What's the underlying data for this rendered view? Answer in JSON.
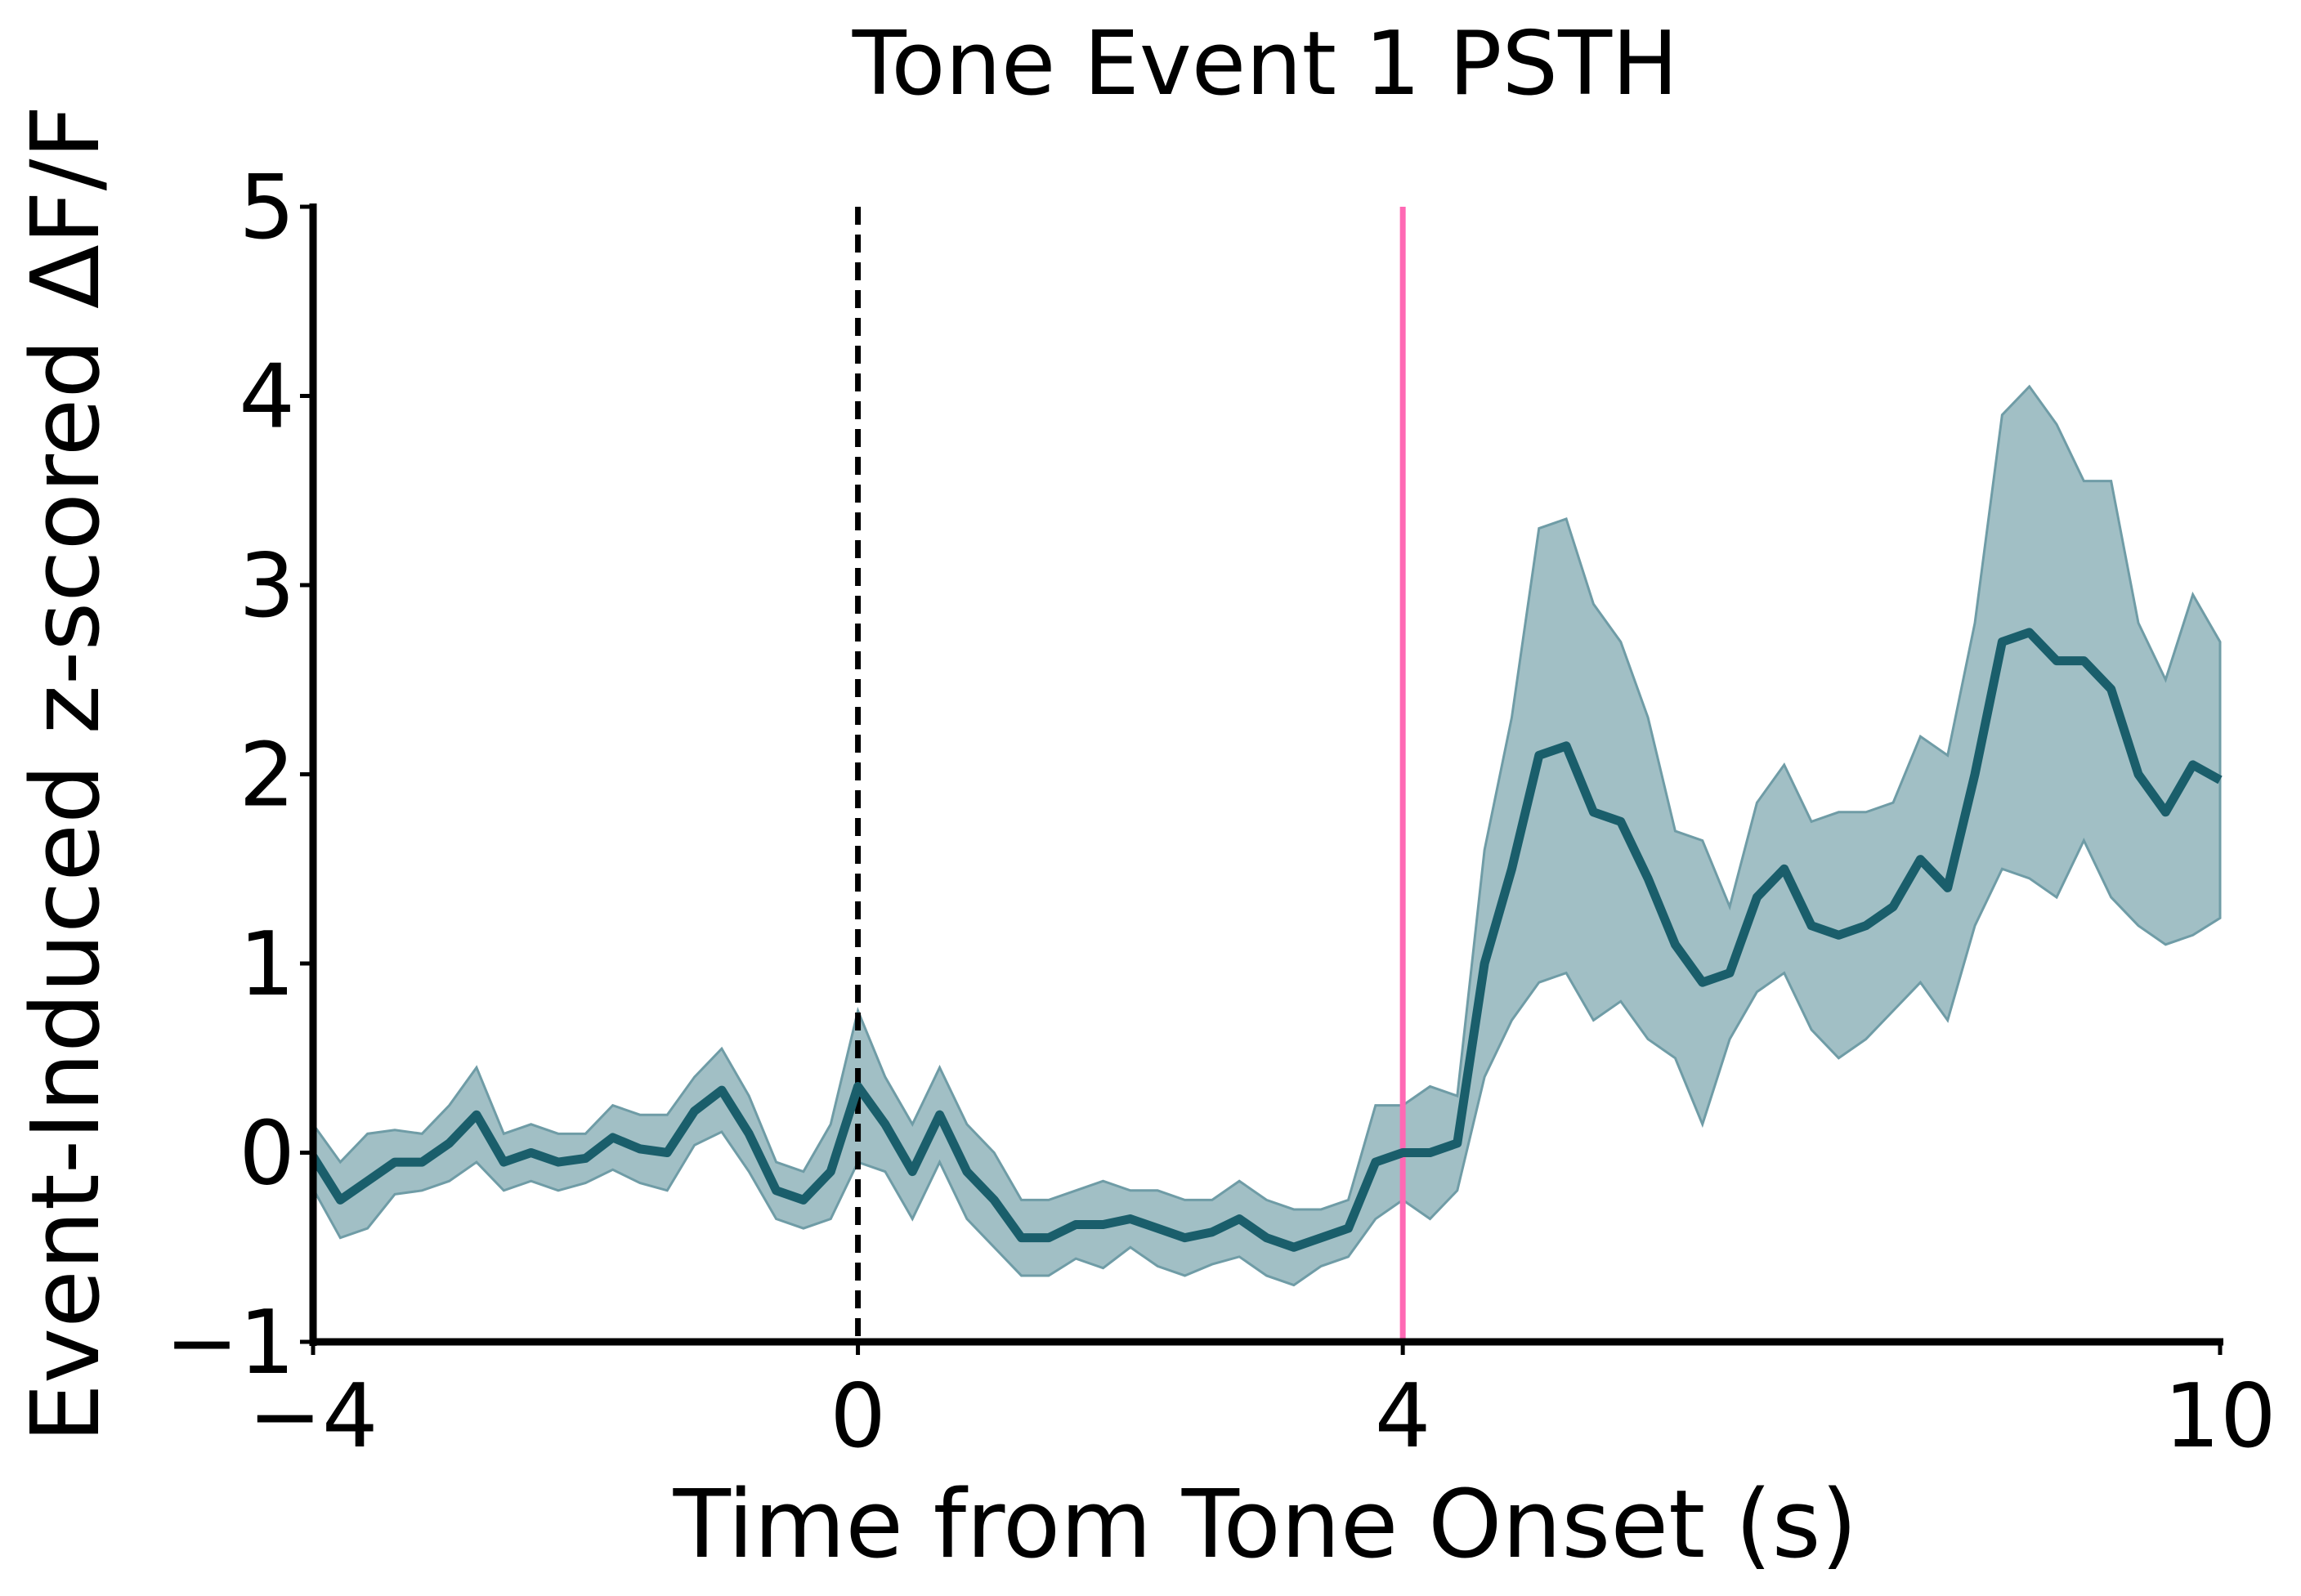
{
  "chart_data": {
    "type": "line",
    "title": "Tone Event 1 PSTH",
    "xlabel": "Time from Tone Onset (s)",
    "ylabel": "Event-Induced z-scored ΔF/F",
    "x": [
      -4,
      -3.8,
      -3.6,
      -3.4,
      -3.2,
      -3,
      -2.8,
      -2.6,
      -2.4,
      -2.2,
      -2,
      -1.8,
      -1.6,
      -1.4,
      -1.2,
      -1,
      -0.8,
      -0.6,
      -0.4,
      -0.2,
      0,
      0.2,
      0.4,
      0.6,
      0.8,
      1,
      1.2,
      1.4,
      1.6,
      1.8,
      2,
      2.2,
      2.4,
      2.6,
      2.8,
      3,
      3.2,
      3.4,
      3.6,
      3.8,
      4,
      4.2,
      4.4,
      4.6,
      4.8,
      5,
      5.2,
      5.4,
      5.6,
      5.8,
      6,
      6.2,
      6.4,
      6.6,
      6.8,
      7,
      7.2,
      7.4,
      7.6,
      7.8,
      8,
      8.2,
      8.4,
      8.6,
      8.8,
      9,
      9.2,
      9.4,
      9.6,
      9.8,
      10
    ],
    "values": [
      -0.02,
      -0.25,
      -0.15,
      -0.05,
      -0.05,
      0.05,
      0.2,
      -0.05,
      0,
      -0.05,
      -0.03,
      0.08,
      0.02,
      0,
      0.22,
      0.33,
      0.1,
      -0.2,
      -0.25,
      -0.1,
      0.35,
      0.15,
      -0.1,
      0.2,
      -0.1,
      -0.25,
      -0.45,
      -0.45,
      -0.38,
      -0.38,
      -0.35,
      -0.4,
      -0.45,
      -0.42,
      -0.35,
      -0.45,
      -0.5,
      -0.45,
      -0.4,
      -0.05,
      0,
      0,
      0.05,
      1,
      1.5,
      2.1,
      2.15,
      1.8,
      1.75,
      1.45,
      1.1,
      0.9,
      0.95,
      1.35,
      1.5,
      1.2,
      1.15,
      1.2,
      1.3,
      1.55,
      1.4,
      2,
      2.7,
      2.75,
      2.6,
      2.6,
      2.45,
      2,
      1.8,
      2.05,
      1.97
    ],
    "upper": [
      0.15,
      -0.05,
      0.1,
      0.12,
      0.1,
      0.25,
      0.45,
      0.1,
      0.15,
      0.1,
      0.1,
      0.25,
      0.2,
      0.2,
      0.4,
      0.55,
      0.3,
      -0.05,
      -0.1,
      0.15,
      0.75,
      0.4,
      0.15,
      0.45,
      0.15,
      0,
      -0.25,
      -0.25,
      -0.2,
      -0.15,
      -0.2,
      -0.2,
      -0.25,
      -0.25,
      -0.15,
      -0.25,
      -0.3,
      -0.3,
      -0.25,
      0.25,
      0.25,
      0.35,
      0.3,
      1.6,
      2.3,
      3.3,
      3.35,
      2.9,
      2.7,
      2.3,
      1.7,
      1.65,
      1.3,
      1.85,
      2.05,
      1.75,
      1.8,
      1.8,
      1.85,
      2.2,
      2.1,
      2.8,
      3.9,
      4.05,
      3.85,
      3.55,
      3.55,
      2.8,
      2.5,
      2.95,
      2.7
    ],
    "lower": [
      -0.19,
      -0.45,
      -0.4,
      -0.22,
      -0.2,
      -0.15,
      -0.05,
      -0.2,
      -0.15,
      -0.2,
      -0.16,
      -0.09,
      -0.16,
      -0.2,
      0.04,
      0.11,
      -0.1,
      -0.35,
      -0.4,
      -0.35,
      -0.05,
      -0.1,
      -0.35,
      -0.05,
      -0.35,
      -0.5,
      -0.65,
      -0.65,
      -0.56,
      -0.61,
      -0.5,
      -0.6,
      -0.65,
      -0.59,
      -0.55,
      -0.65,
      -0.7,
      -0.6,
      -0.55,
      -0.35,
      -0.25,
      -0.35,
      -0.2,
      0.4,
      0.7,
      0.9,
      0.95,
      0.7,
      0.8,
      0.6,
      0.5,
      0.15,
      0.6,
      0.85,
      0.95,
      0.65,
      0.5,
      0.6,
      0.75,
      0.9,
      0.7,
      1.2,
      1.5,
      1.45,
      1.35,
      1.65,
      1.35,
      1.2,
      1.1,
      1.15,
      1.24
    ],
    "color": "#1a5e6b",
    "band_color": "#6f9ca6",
    "vlines": [
      {
        "x": 0,
        "color": "#000000",
        "dashed": true
      },
      {
        "x": 4,
        "color": "#ff69b4",
        "dashed": false
      }
    ],
    "xlim": [
      -4,
      10
    ],
    "ylim": [
      -1,
      5
    ],
    "xticks": [
      {
        "value": -4,
        "label": "−4"
      },
      0,
      4,
      10
    ],
    "yticks": [
      {
        "value": -1,
        "label": "−1"
      },
      0,
      1,
      2,
      3,
      4,
      5
    ]
  }
}
